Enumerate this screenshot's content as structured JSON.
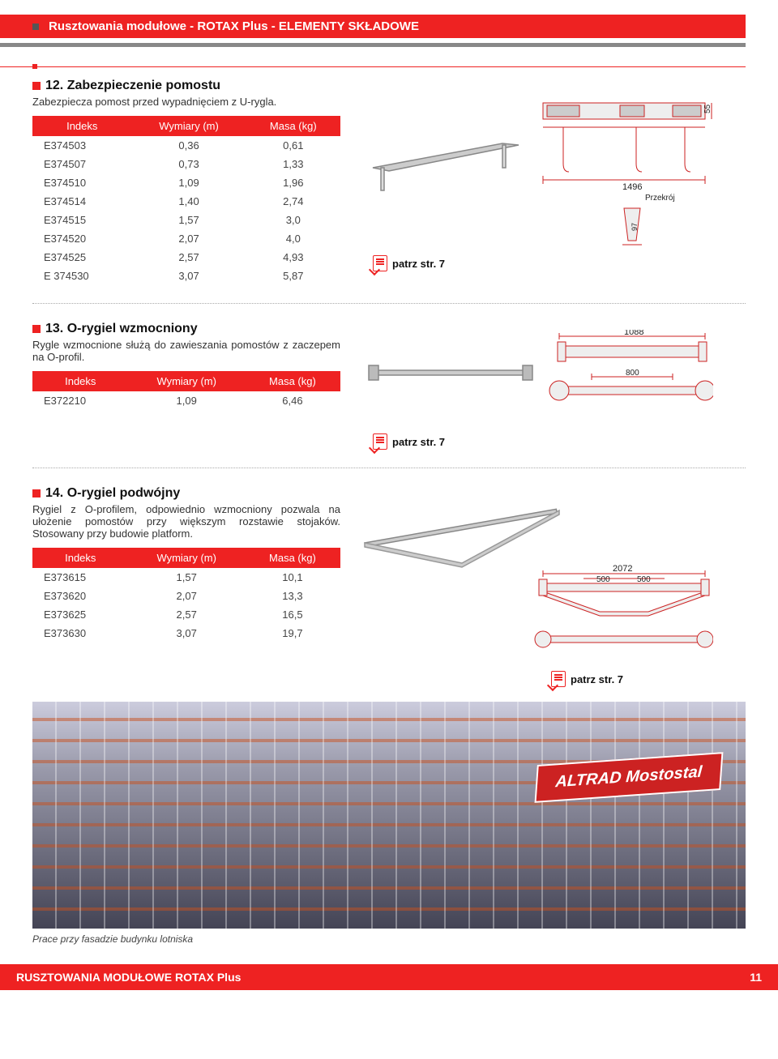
{
  "header": {
    "title": "Rusztowania modułowe - ROTAX Plus - ELEMENTY SKŁADOWE"
  },
  "section12": {
    "title": "12. Zabezpieczenie pomostu",
    "desc": "Zabezpiecza pomost przed wypadnięciem z U-rygla.",
    "table": {
      "cols": [
        "Indeks",
        "Wymiary (m)",
        "Masa (kg)"
      ],
      "rows": [
        [
          "E374503",
          "0,36",
          "0,61"
        ],
        [
          "E374507",
          "0,73",
          "1,33"
        ],
        [
          "E374510",
          "1,09",
          "1,96"
        ],
        [
          "E374514",
          "1,40",
          "2,74"
        ],
        [
          "E374515",
          "1,57",
          "3,0"
        ],
        [
          "E374520",
          "2,07",
          "4,0"
        ],
        [
          "E374525",
          "2,57",
          "4,93"
        ],
        [
          "E 374530",
          "3,07",
          "5,87"
        ]
      ]
    },
    "dim_width": "1496",
    "dim_height": "55",
    "dim_section": "97",
    "przekroj": "Przekrój",
    "patrz": "patrz str. 7"
  },
  "section13": {
    "title": "13. O-rygiel wzmocniony",
    "desc": "Rygle wzmocnione służą do zawieszania pomostów z zaczepem na O-profil.",
    "table": {
      "cols": [
        "Indeks",
        "Wymiary (m)",
        "Masa (kg)"
      ],
      "rows": [
        [
          "E372210",
          "1,09",
          "6,46"
        ]
      ]
    },
    "dim_width": "1088",
    "dim_inner": "800",
    "patrz": "patrz str. 7"
  },
  "section14": {
    "title": "14. O-rygiel podwójny",
    "desc": "Rygiel z O-profilem, odpowiednio wzmocniony pozwala na ułożenie pomostów przy większym rozstawie stojaków. Stosowany przy budowie platform.",
    "table": {
      "cols": [
        "Indeks",
        "Wymiary (m)",
        "Masa (kg)"
      ],
      "rows": [
        [
          "E373615",
          "1,57",
          "10,1"
        ],
        [
          "E373620",
          "2,07",
          "13,3"
        ],
        [
          "E373625",
          "2,57",
          "16,5"
        ],
        [
          "E373630",
          "3,07",
          "19,7"
        ]
      ]
    },
    "dim_width": "2072",
    "dim_seg1": "500",
    "dim_seg2": "500",
    "patrz": "patrz str. 7"
  },
  "photo": {
    "brand": "ALTRAD Mostostal",
    "caption": "Prace przy fasadzie budynku lotniska"
  },
  "footer": {
    "title": "RUSZTOWANIA MODUŁOWE ROTAX Plus",
    "page": "11"
  },
  "colors": {
    "accent": "#e22"
  }
}
